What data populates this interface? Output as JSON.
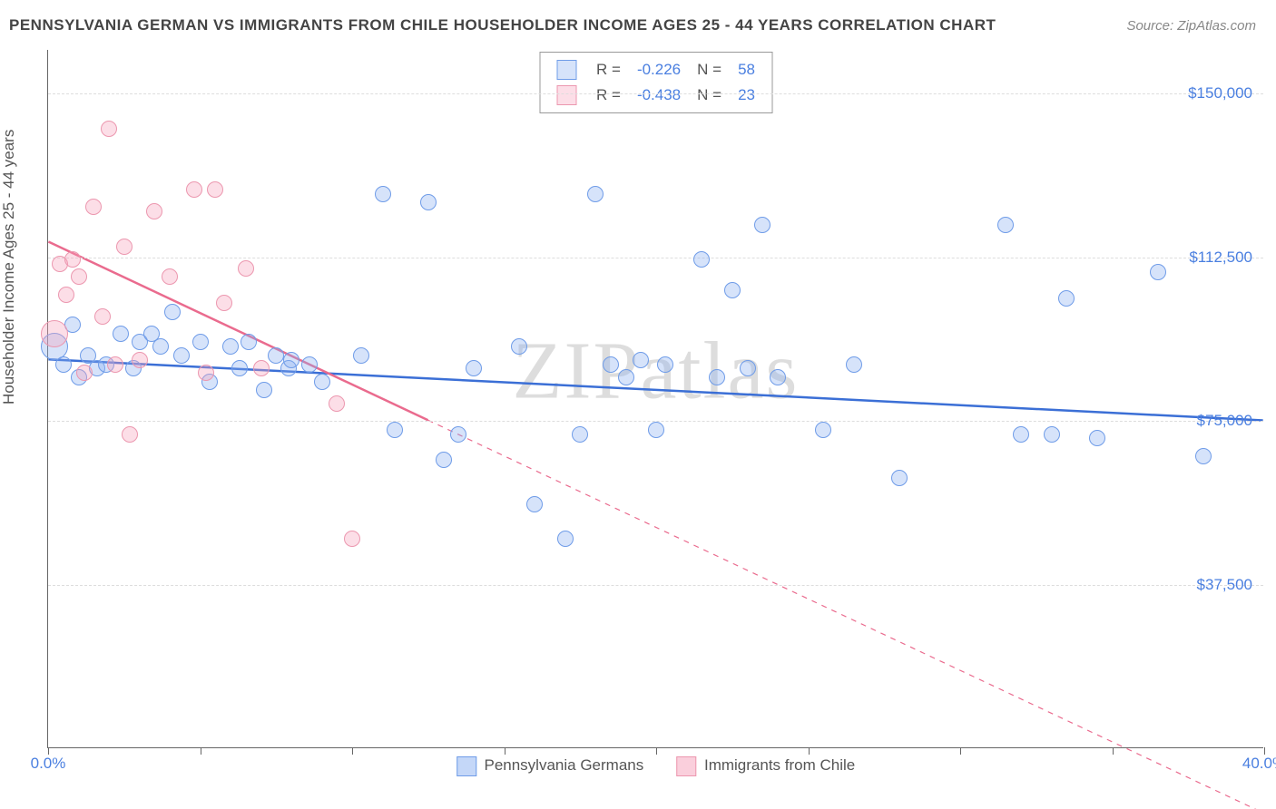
{
  "title": "PENNSYLVANIA GERMAN VS IMMIGRANTS FROM CHILE HOUSEHOLDER INCOME AGES 25 - 44 YEARS CORRELATION CHART",
  "source": "Source: ZipAtlas.com",
  "watermark": "ZIPatlas",
  "ylabel": "Householder Income Ages 25 - 44 years",
  "chart": {
    "type": "scatter",
    "xlim": [
      0,
      40
    ],
    "ylim": [
      0,
      160000
    ],
    "ytick_values": [
      37500,
      75000,
      112500,
      150000
    ],
    "ytick_labels": [
      "$37,500",
      "$75,000",
      "$112,500",
      "$150,000"
    ],
    "xtick_positions": [
      0,
      5,
      10,
      15,
      20,
      25,
      30,
      35,
      40
    ],
    "xtick_labels": {
      "0": "0.0%",
      "40": "40.0%"
    },
    "background_color": "#ffffff",
    "grid_color": "#dddddd",
    "axis_color": "#666666",
    "label_color": "#4a7fe0",
    "marker_radius": 9,
    "marker_radius_large": 15,
    "series": [
      {
        "name": "Pennsylvania Germans",
        "fill": "rgba(137,176,241,0.35)",
        "stroke": "#6f9ce8",
        "trend_color": "#3b6fd6",
        "trend_width": 2.5,
        "R_label": "R = ",
        "R": "-0.226",
        "N_label": "N = ",
        "N": "58",
        "trend": {
          "x1": 0,
          "y1": 89000,
          "x2": 40,
          "y2": 75000,
          "dash_after_x": null
        },
        "points": [
          {
            "x": 0.2,
            "y": 92000,
            "r": 15
          },
          {
            "x": 0.5,
            "y": 88000
          },
          {
            "x": 0.8,
            "y": 97000
          },
          {
            "x": 1.0,
            "y": 85000
          },
          {
            "x": 1.3,
            "y": 90000
          },
          {
            "x": 1.6,
            "y": 87000
          },
          {
            "x": 1.9,
            "y": 88000
          },
          {
            "x": 2.4,
            "y": 95000
          },
          {
            "x": 2.8,
            "y": 87000
          },
          {
            "x": 3.0,
            "y": 93000
          },
          {
            "x": 3.4,
            "y": 95000
          },
          {
            "x": 3.7,
            "y": 92000
          },
          {
            "x": 4.1,
            "y": 100000
          },
          {
            "x": 4.4,
            "y": 90000
          },
          {
            "x": 5.0,
            "y": 93000
          },
          {
            "x": 5.3,
            "y": 84000
          },
          {
            "x": 6.0,
            "y": 92000
          },
          {
            "x": 6.3,
            "y": 87000
          },
          {
            "x": 6.6,
            "y": 93000
          },
          {
            "x": 7.1,
            "y": 82000
          },
          {
            "x": 7.5,
            "y": 90000
          },
          {
            "x": 7.9,
            "y": 87000
          },
          {
            "x": 8.0,
            "y": 89000
          },
          {
            "x": 8.6,
            "y": 88000
          },
          {
            "x": 9.0,
            "y": 84000
          },
          {
            "x": 10.3,
            "y": 90000
          },
          {
            "x": 11.0,
            "y": 127000
          },
          {
            "x": 11.4,
            "y": 73000
          },
          {
            "x": 12.5,
            "y": 125000
          },
          {
            "x": 13.0,
            "y": 66000
          },
          {
            "x": 13.5,
            "y": 72000
          },
          {
            "x": 14.0,
            "y": 87000
          },
          {
            "x": 15.5,
            "y": 92000
          },
          {
            "x": 16.0,
            "y": 56000
          },
          {
            "x": 17.0,
            "y": 48000
          },
          {
            "x": 17.5,
            "y": 72000
          },
          {
            "x": 18.0,
            "y": 127000
          },
          {
            "x": 18.5,
            "y": 88000
          },
          {
            "x": 19.0,
            "y": 85000
          },
          {
            "x": 19.5,
            "y": 89000
          },
          {
            "x": 20.0,
            "y": 73000
          },
          {
            "x": 20.3,
            "y": 88000
          },
          {
            "x": 21.5,
            "y": 112000
          },
          {
            "x": 22.0,
            "y": 85000
          },
          {
            "x": 22.5,
            "y": 105000
          },
          {
            "x": 23.0,
            "y": 87000
          },
          {
            "x": 23.5,
            "y": 120000
          },
          {
            "x": 24.0,
            "y": 85000
          },
          {
            "x": 25.5,
            "y": 73000
          },
          {
            "x": 26.5,
            "y": 88000
          },
          {
            "x": 28.0,
            "y": 62000
          },
          {
            "x": 31.5,
            "y": 120000
          },
          {
            "x": 32.0,
            "y": 72000
          },
          {
            "x": 33.0,
            "y": 72000
          },
          {
            "x": 33.5,
            "y": 103000
          },
          {
            "x": 34.5,
            "y": 71000
          },
          {
            "x": 36.5,
            "y": 109000
          },
          {
            "x": 38.0,
            "y": 67000
          }
        ]
      },
      {
        "name": "Immigrants from Chile",
        "fill": "rgba(245,160,185,0.35)",
        "stroke": "#ec97af",
        "trend_color": "#ea6b8e",
        "trend_width": 2.5,
        "R_label": "R = ",
        "R": "-0.438",
        "N_label": "N = ",
        "N": "23",
        "trend": {
          "x1": 0,
          "y1": 116000,
          "x2": 40,
          "y2": -15000,
          "dash_after_x": 12.5
        },
        "points": [
          {
            "x": 0.2,
            "y": 95000,
            "r": 15
          },
          {
            "x": 0.4,
            "y": 111000
          },
          {
            "x": 0.6,
            "y": 104000
          },
          {
            "x": 0.8,
            "y": 112000
          },
          {
            "x": 1.0,
            "y": 108000
          },
          {
            "x": 1.2,
            "y": 86000
          },
          {
            "x": 1.5,
            "y": 124000
          },
          {
            "x": 1.8,
            "y": 99000
          },
          {
            "x": 2.0,
            "y": 142000
          },
          {
            "x": 2.2,
            "y": 88000
          },
          {
            "x": 2.5,
            "y": 115000
          },
          {
            "x": 2.7,
            "y": 72000
          },
          {
            "x": 3.0,
            "y": 89000
          },
          {
            "x": 3.5,
            "y": 123000
          },
          {
            "x": 4.0,
            "y": 108000
          },
          {
            "x": 4.8,
            "y": 128000
          },
          {
            "x": 5.2,
            "y": 86000
          },
          {
            "x": 5.5,
            "y": 128000
          },
          {
            "x": 5.8,
            "y": 102000
          },
          {
            "x": 6.5,
            "y": 110000
          },
          {
            "x": 7.0,
            "y": 87000
          },
          {
            "x": 9.5,
            "y": 79000
          },
          {
            "x": 10.0,
            "y": 48000
          }
        ]
      }
    ]
  },
  "legend_bottom": [
    {
      "label": "Pennsylvania Germans",
      "fill": "rgba(137,176,241,0.5)",
      "stroke": "#6f9ce8"
    },
    {
      "label": "Immigrants from Chile",
      "fill": "rgba(245,160,185,0.5)",
      "stroke": "#ec97af"
    }
  ]
}
